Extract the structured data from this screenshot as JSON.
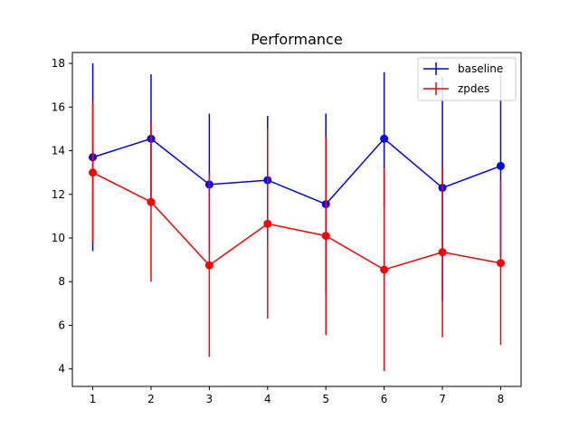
{
  "chart_data": {
    "type": "line",
    "title": "Performance",
    "xlabel": "",
    "ylabel": "",
    "x": [
      1,
      2,
      3,
      4,
      5,
      6,
      7,
      8
    ],
    "xlim": [
      0.65,
      8.35
    ],
    "ylim": [
      3.2,
      18.5
    ],
    "xticks": [
      "1",
      "2",
      "3",
      "4",
      "5",
      "6",
      "7",
      "8"
    ],
    "yticks": [
      "4",
      "6",
      "8",
      "10",
      "12",
      "14",
      "16",
      "18"
    ],
    "grid": false,
    "legend_position": "top-right",
    "series": [
      {
        "name": "baseline",
        "color": "#0000ff",
        "values": [
          13.7,
          14.55,
          12.45,
          12.65,
          11.55,
          14.55,
          12.3,
          13.3
        ],
        "err_low": [
          9.4,
          11.6,
          9.3,
          9.7,
          7.5,
          11.5,
          7.1,
          9.1
        ],
        "err_high": [
          18.0,
          17.5,
          15.7,
          15.6,
          15.7,
          17.6,
          17.4,
          17.5
        ]
      },
      {
        "name": "zpdes",
        "color": "#ff0000",
        "values": [
          13.0,
          11.65,
          8.75,
          10.65,
          10.1,
          8.55,
          9.35,
          8.85
        ],
        "err_low": [
          9.8,
          8.0,
          4.55,
          6.3,
          5.55,
          3.9,
          5.45,
          5.1
        ],
        "err_high": [
          16.2,
          15.3,
          12.95,
          15.0,
          14.65,
          13.2,
          13.3,
          12.6
        ]
      }
    ]
  }
}
